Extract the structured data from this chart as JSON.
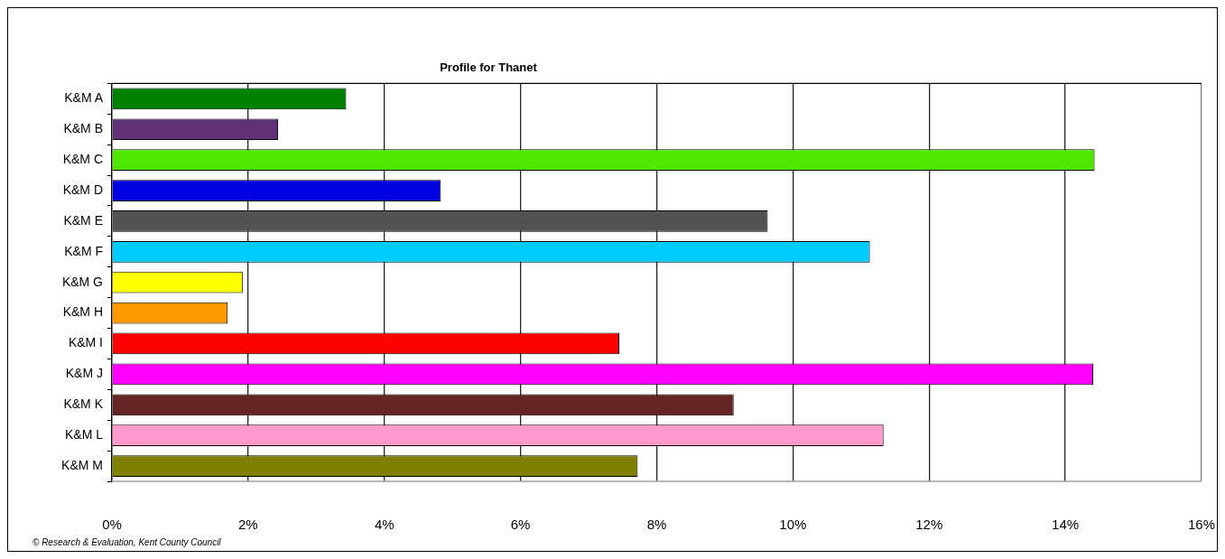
{
  "chart_data": {
    "type": "bar",
    "title": "Profile for Thanet",
    "orientation": "horizontal",
    "categories": [
      "K&M A",
      "K&M B",
      "K&M C",
      "K&M D",
      "K&M E",
      "K&M F",
      "K&M G",
      "K&M H",
      "K&M I",
      "K&M J",
      "K&M K",
      "K&M L",
      "K&M M"
    ],
    "values": [
      3.44,
      2.44,
      14.43,
      4.83,
      9.63,
      11.13,
      1.92,
      1.7,
      7.45,
      14.41,
      9.13,
      11.33,
      7.72
    ],
    "colors": [
      "#008000",
      "#5f3278",
      "#4ee800",
      "#0000e0",
      "#525252",
      "#00ccff",
      "#ffff00",
      "#ff9900",
      "#ff0000",
      "#ff00ff",
      "#632523",
      "#ff99cc",
      "#808000"
    ],
    "xlim": [
      0,
      16
    ],
    "xticks": [
      {
        "value": 0,
        "label": "0%"
      },
      {
        "value": 2,
        "label": "2%"
      },
      {
        "value": 4,
        "label": "4%"
      },
      {
        "value": 6,
        "label": "6%"
      },
      {
        "value": 8,
        "label": "8%"
      },
      {
        "value": 10,
        "label": "10%"
      },
      {
        "value": 12,
        "label": "12%"
      },
      {
        "value": 14,
        "label": "14%"
      },
      {
        "value": 16,
        "label": "16%"
      }
    ],
    "grid": "x",
    "annotations": [
      "© Research & Evaluation, Kent County Council"
    ]
  }
}
